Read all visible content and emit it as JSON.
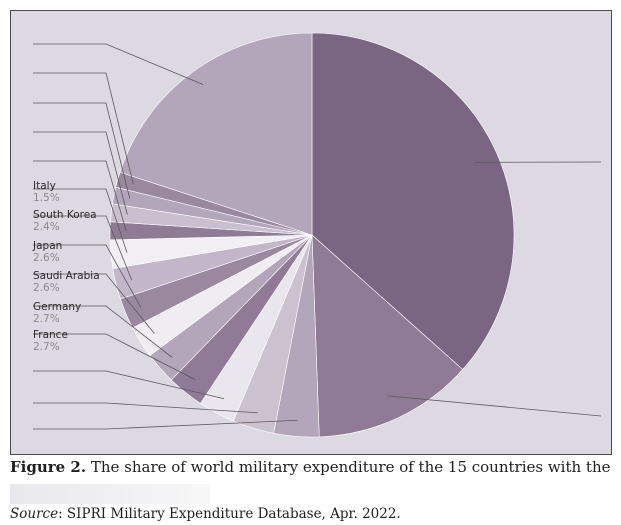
{
  "chart_data": {
    "type": "pie",
    "slices": [
      {
        "label": "",
        "value": 38.5,
        "color": "#7a6582"
      },
      {
        "label": "",
        "value": 13.5,
        "color": "#8f7b95"
      },
      {
        "label": "",
        "value": 3.8,
        "color": "#b3a6ba"
      },
      {
        "label": "",
        "value": 3.5,
        "color": "#cbc1cf"
      },
      {
        "label": "",
        "value": 3.1,
        "color": "#e9e6ee"
      },
      {
        "label": "",
        "value": 3.1,
        "color": "#8f7b95"
      },
      {
        "label": "France",
        "value": 2.7,
        "value_text": "2.7%",
        "color": "#b3a6ba"
      },
      {
        "label": "Germany",
        "value": 2.7,
        "value_text": "2.7%",
        "color": "#efedf2"
      },
      {
        "label": "Saudi Arabia",
        "value": 2.6,
        "value_text": "2.6%",
        "color": "#9a889f"
      },
      {
        "label": "Japan",
        "value": 2.6,
        "value_text": "2.6%",
        "color": "#c2b6c8"
      },
      {
        "label": "South Korea",
        "value": 2.4,
        "value_text": "2.4%",
        "color": "#f1eff4"
      },
      {
        "label": "Italy",
        "value": 1.5,
        "value_text": "1.5%",
        "color": "#8f7b95"
      },
      {
        "label": "",
        "value": 1.5,
        "color": "#c9bfce"
      },
      {
        "label": "",
        "value": 1.4,
        "color": "#b3a6ba"
      },
      {
        "label": "",
        "value": 1.3,
        "color": "#9a889f"
      },
      {
        "label": "",
        "value": 21.0,
        "color": "#b3a6ba"
      }
    ]
  },
  "caption": {
    "figure_label": "Figure 2.",
    "text": " The share of world military expenditure of the 15 countries with the"
  },
  "source": {
    "label": "Source",
    "text": ": SIPRI Military Expenditure Database, Apr. 2022."
  }
}
